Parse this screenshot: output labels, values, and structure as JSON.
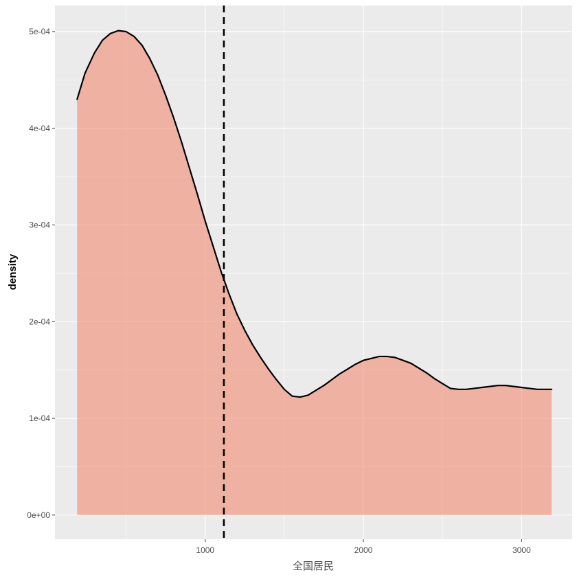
{
  "chart_data": {
    "type": "area",
    "xlabel": "全国居民",
    "ylabel": "density",
    "xlim": [
      50,
      3320
    ],
    "ylim": [
      -2.5e-05,
      0.000527
    ],
    "x_ticks": [
      1000,
      2000,
      3000
    ],
    "x_tick_labels": [
      "1000",
      "2000",
      "3000"
    ],
    "y_ticks": [
      0,
      0.0001,
      0.0002,
      0.0003,
      0.0004,
      0.0005
    ],
    "y_tick_labels": [
      "0e+00",
      "1e-04",
      "2e-04",
      "3e-04",
      "4e-04",
      "5e-04"
    ],
    "grid": true,
    "series": [
      {
        "x": [
          190,
          240,
          300,
          350,
          400,
          450,
          500,
          550,
          600,
          650,
          700,
          750,
          800,
          850,
          900,
          950,
          1000,
          1050,
          1100,
          1150,
          1200,
          1250,
          1300,
          1350,
          1400,
          1450,
          1500,
          1550,
          1600,
          1650,
          1700,
          1750,
          1800,
          1850,
          1900,
          1950,
          2000,
          2050,
          2100,
          2150,
          2200,
          2250,
          2300,
          2350,
          2400,
          2450,
          2500,
          2550,
          2600,
          2650,
          2700,
          2750,
          2800,
          2850,
          2900,
          2950,
          3000,
          3050,
          3100,
          3150,
          3190
        ],
        "y": [
          0.00043,
          0.000457,
          0.000478,
          0.000491,
          0.000498,
          0.000501,
          0.0005,
          0.000495,
          0.000486,
          0.000472,
          0.000455,
          0.000434,
          0.000411,
          0.000386,
          0.000359,
          0.000332,
          0.000304,
          0.000278,
          0.000252,
          0.000229,
          0.000208,
          0.000191,
          0.000176,
          0.000163,
          0.000151,
          0.00014,
          0.00013,
          0.000123,
          0.000122,
          0.000124,
          0.000129,
          0.000134,
          0.00014,
          0.000146,
          0.000151,
          0.000156,
          0.00016,
          0.000162,
          0.000164,
          0.000164,
          0.000163,
          0.00016,
          0.000157,
          0.000152,
          0.000147,
          0.000141,
          0.000136,
          0.000131,
          0.00013,
          0.00013,
          0.000131,
          0.000132,
          0.000133,
          0.000134,
          0.000134,
          0.000133,
          0.000132,
          0.000131,
          0.00013,
          0.00013,
          0.00013
        ]
      }
    ],
    "vline_x": 1118,
    "colors": {
      "panel_background": "#ebebeb",
      "grid_major": "#ffffff",
      "fill": "#f08a72",
      "line": "#000000"
    }
  }
}
